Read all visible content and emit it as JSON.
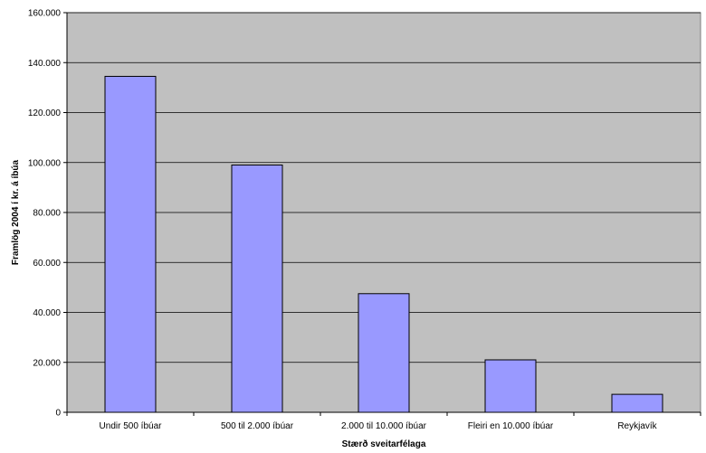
{
  "chart_data": {
    "type": "bar",
    "title": "",
    "xlabel": "Stærð sveitarfélaga",
    "ylabel": "Framlög 2004 í kr. á íbúa",
    "categories": [
      "Undir 500 íbúar",
      "500 til 2.000 íbúar",
      "2.000 til 10.000 íbúar",
      "Fleiri en 10.000 íbúar",
      "Reykjavík"
    ],
    "values": [
      134500,
      99000,
      47500,
      21000,
      7200
    ],
    "ylim": [
      0,
      160000
    ],
    "yticks": [
      0,
      20000,
      40000,
      60000,
      80000,
      100000,
      120000,
      140000,
      160000
    ],
    "ytick_labels": [
      "0",
      "20.000",
      "40.000",
      "60.000",
      "80.000",
      "100.000",
      "120.000",
      "140.000",
      "160.000"
    ],
    "grid": true,
    "legend": "none",
    "colors": {
      "plot_background": "#c0c0c0",
      "bar_fill": "#9999ff",
      "bar_stroke": "#000000",
      "gridline": "#000000"
    }
  }
}
